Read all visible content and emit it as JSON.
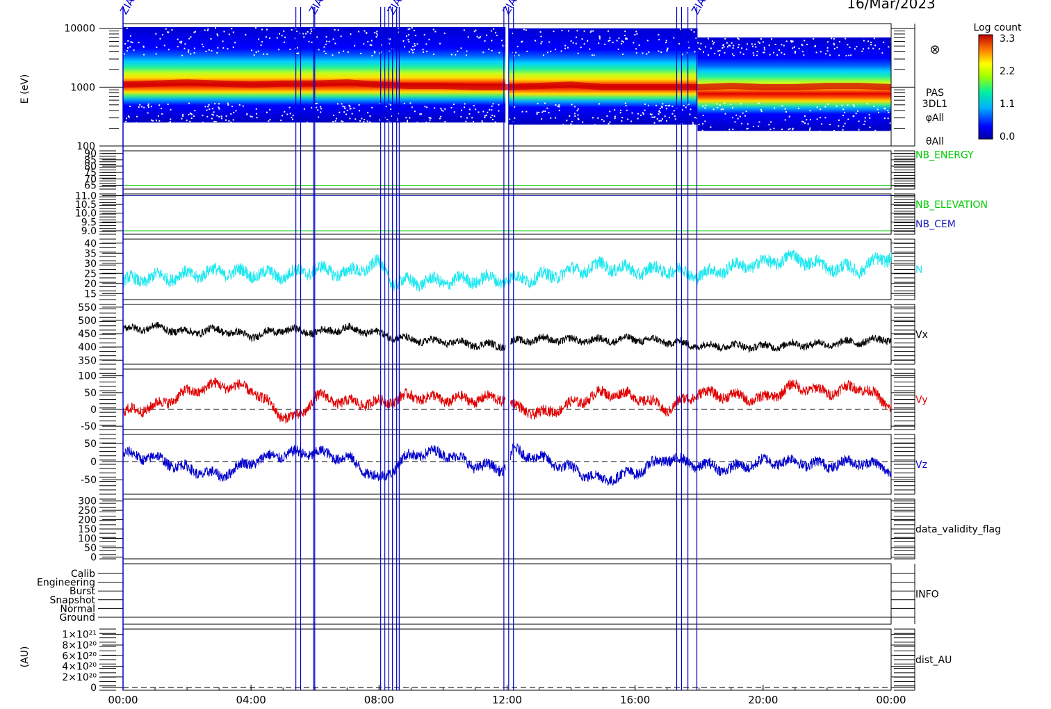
{
  "date_title": "16/Mar/2023",
  "colors": {
    "black": "#000000",
    "blue": "#0000cc",
    "red": "#e00000",
    "cyan": "#20e8f0",
    "green": "#00cc00",
    "nb_blue": "#2020c0"
  },
  "event_marker_labels": [
    "ZIAS",
    "ZIAS",
    "ZIAS",
    "ZIAS",
    "ZIAS"
  ],
  "chart_data": [
    {
      "type": "heatmap",
      "panel": "spectrogram",
      "ylabel": "E (eV)",
      "yscale": "log",
      "ylim": [
        100,
        12000
      ],
      "yticks": [
        "10000",
        "1000",
        "100"
      ],
      "side_labels": [
        "PAS",
        "3DL1",
        "φAll",
        "θAll"
      ],
      "symbol": "⊗",
      "colorbar": {
        "title": "Log count",
        "ticks": [
          "3.3",
          "2.2",
          "1.1",
          "0.0"
        ],
        "range": [
          0.0,
          3.3
        ]
      },
      "peak_energy_eV": [
        1100,
        1150,
        1200,
        1150,
        1100,
        1150,
        1150,
        1200,
        1100,
        1050,
        1050,
        1000,
        1000,
        1050,
        1100,
        1000,
        1000,
        1000,
        1000,
        1050,
        1000,
        1000,
        1050,
        1050,
        1000
      ]
    },
    {
      "type": "line",
      "panel": "nb_energy",
      "side_labels": [
        "NB_ENERGY"
      ],
      "ylim": [
        62,
        92
      ],
      "yticks": [
        "90",
        "85",
        "80",
        "75",
        "70",
        "65"
      ],
      "value": 65
    },
    {
      "type": "line",
      "panel": "nb_elevation",
      "side_labels": [
        "NB_ELEVATION",
        "NB_CEM"
      ],
      "ylim": [
        8.8,
        11.1
      ],
      "yticks": [
        "11.0",
        "10.5",
        "10.0",
        "9.5",
        "9.0"
      ],
      "series": [
        {
          "name": "NB_ELEVATION",
          "value": 9.0
        },
        {
          "name": "NB_CEM",
          "value": 11.0
        }
      ]
    },
    {
      "type": "line",
      "panel": "density",
      "side_labels": [
        "N"
      ],
      "ylim": [
        12,
        42
      ],
      "yticks": [
        "40",
        "35",
        "30",
        "25",
        "20",
        "15"
      ],
      "x_hours": [
        0,
        1,
        2,
        3,
        4,
        5,
        6,
        7,
        8,
        8.5,
        9,
        10,
        11,
        12,
        13,
        14,
        15,
        16,
        17,
        18,
        19,
        20,
        21,
        22,
        23,
        24
      ],
      "values": [
        21,
        23,
        24,
        26,
        25,
        24,
        27,
        25,
        30,
        20,
        21,
        21,
        22,
        22,
        23,
        26,
        29,
        26,
        27,
        24,
        28,
        30,
        33,
        28,
        27,
        34
      ]
    },
    {
      "type": "line",
      "panel": "vx",
      "side_labels": [
        "Vx"
      ],
      "ylim": [
        335,
        560
      ],
      "yticks": [
        "550",
        "500",
        "450",
        "400",
        "350"
      ],
      "x_hours": [
        0,
        1,
        2,
        3,
        4,
        5,
        6,
        7,
        8,
        9,
        10,
        11,
        11.9,
        12.2,
        13,
        14,
        15,
        16,
        17,
        18,
        19,
        20,
        21,
        22,
        23,
        24
      ],
      "values": [
        465,
        475,
        455,
        465,
        440,
        465,
        455,
        470,
        450,
        425,
        420,
        410,
        405,
        420,
        430,
        425,
        425,
        430,
        420,
        405,
        405,
        400,
        410,
        410,
        420,
        430
      ]
    },
    {
      "type": "line",
      "panel": "vy",
      "side_labels": [
        "Vy"
      ],
      "ylim": [
        -60,
        120
      ],
      "yticks": [
        "100",
        "50",
        "0",
        "-50"
      ],
      "baseline": 0,
      "x_hours": [
        0,
        1,
        2,
        3,
        4,
        5,
        5.5,
        6,
        7,
        8,
        9,
        10,
        11,
        11.9,
        12.2,
        13,
        14,
        15,
        16,
        17,
        18,
        19,
        20,
        21,
        22,
        23,
        24
      ],
      "values": [
        -10,
        10,
        50,
        75,
        60,
        -20,
        -25,
        40,
        20,
        20,
        40,
        30,
        30,
        35,
        10,
        -15,
        15,
        50,
        40,
        0,
        50,
        40,
        30,
        70,
        50,
        70,
        10
      ]
    },
    {
      "type": "line",
      "panel": "vz",
      "side_labels": [
        "Vz"
      ],
      "ylim": [
        -90,
        75
      ],
      "yticks": [
        "50",
        "0",
        "-50"
      ],
      "baseline": 0,
      "x_hours": [
        0,
        1,
        2,
        3,
        4,
        5,
        6,
        7,
        8,
        9,
        10,
        11,
        11.9,
        12.2,
        13,
        14,
        15,
        16,
        17,
        18,
        19,
        20,
        21,
        22,
        23,
        24
      ],
      "values": [
        20,
        10,
        -20,
        -40,
        0,
        20,
        25,
        10,
        -50,
        20,
        25,
        -10,
        -20,
        30,
        10,
        -20,
        -50,
        -30,
        10,
        -10,
        -20,
        0,
        0,
        -10,
        0,
        -20
      ]
    },
    {
      "type": "line",
      "panel": "validity",
      "side_labels": [
        "data_validity_flag"
      ],
      "ylim": [
        -10,
        310
      ],
      "yticks": [
        "300",
        "250",
        "200",
        "150",
        "100",
        "50",
        "0"
      ]
    },
    {
      "type": "line",
      "panel": "info",
      "side_labels": [
        "INFO"
      ],
      "yticks": [
        "Calib",
        "Engineering",
        "Burst",
        "Snapshot",
        "Normal",
        "Ground"
      ]
    },
    {
      "type": "line",
      "panel": "dist_au",
      "side_labels": [
        "dist_AU"
      ],
      "ylabel": "(AU)",
      "ylim": [
        -5e+19,
        1.1e+21
      ],
      "yticks": [
        "1×10²¹",
        "8×10²⁰",
        "6×10²⁰",
        "4×10²⁰",
        "2×10²⁰",
        "0"
      ],
      "value": 0
    }
  ],
  "x_axis": {
    "range_hours": [
      0,
      24
    ],
    "ticks": [
      "00:00",
      "04:00",
      "08:00",
      "12:00",
      "16:00",
      "20:00",
      "00:00"
    ]
  },
  "event_lines_hours": [
    5.4,
    5.55,
    5.95,
    5.99,
    8.05,
    8.18,
    8.3,
    8.42,
    8.55,
    8.63,
    11.9,
    12.05,
    12.2,
    17.3,
    17.45,
    17.65,
    17.93
  ]
}
